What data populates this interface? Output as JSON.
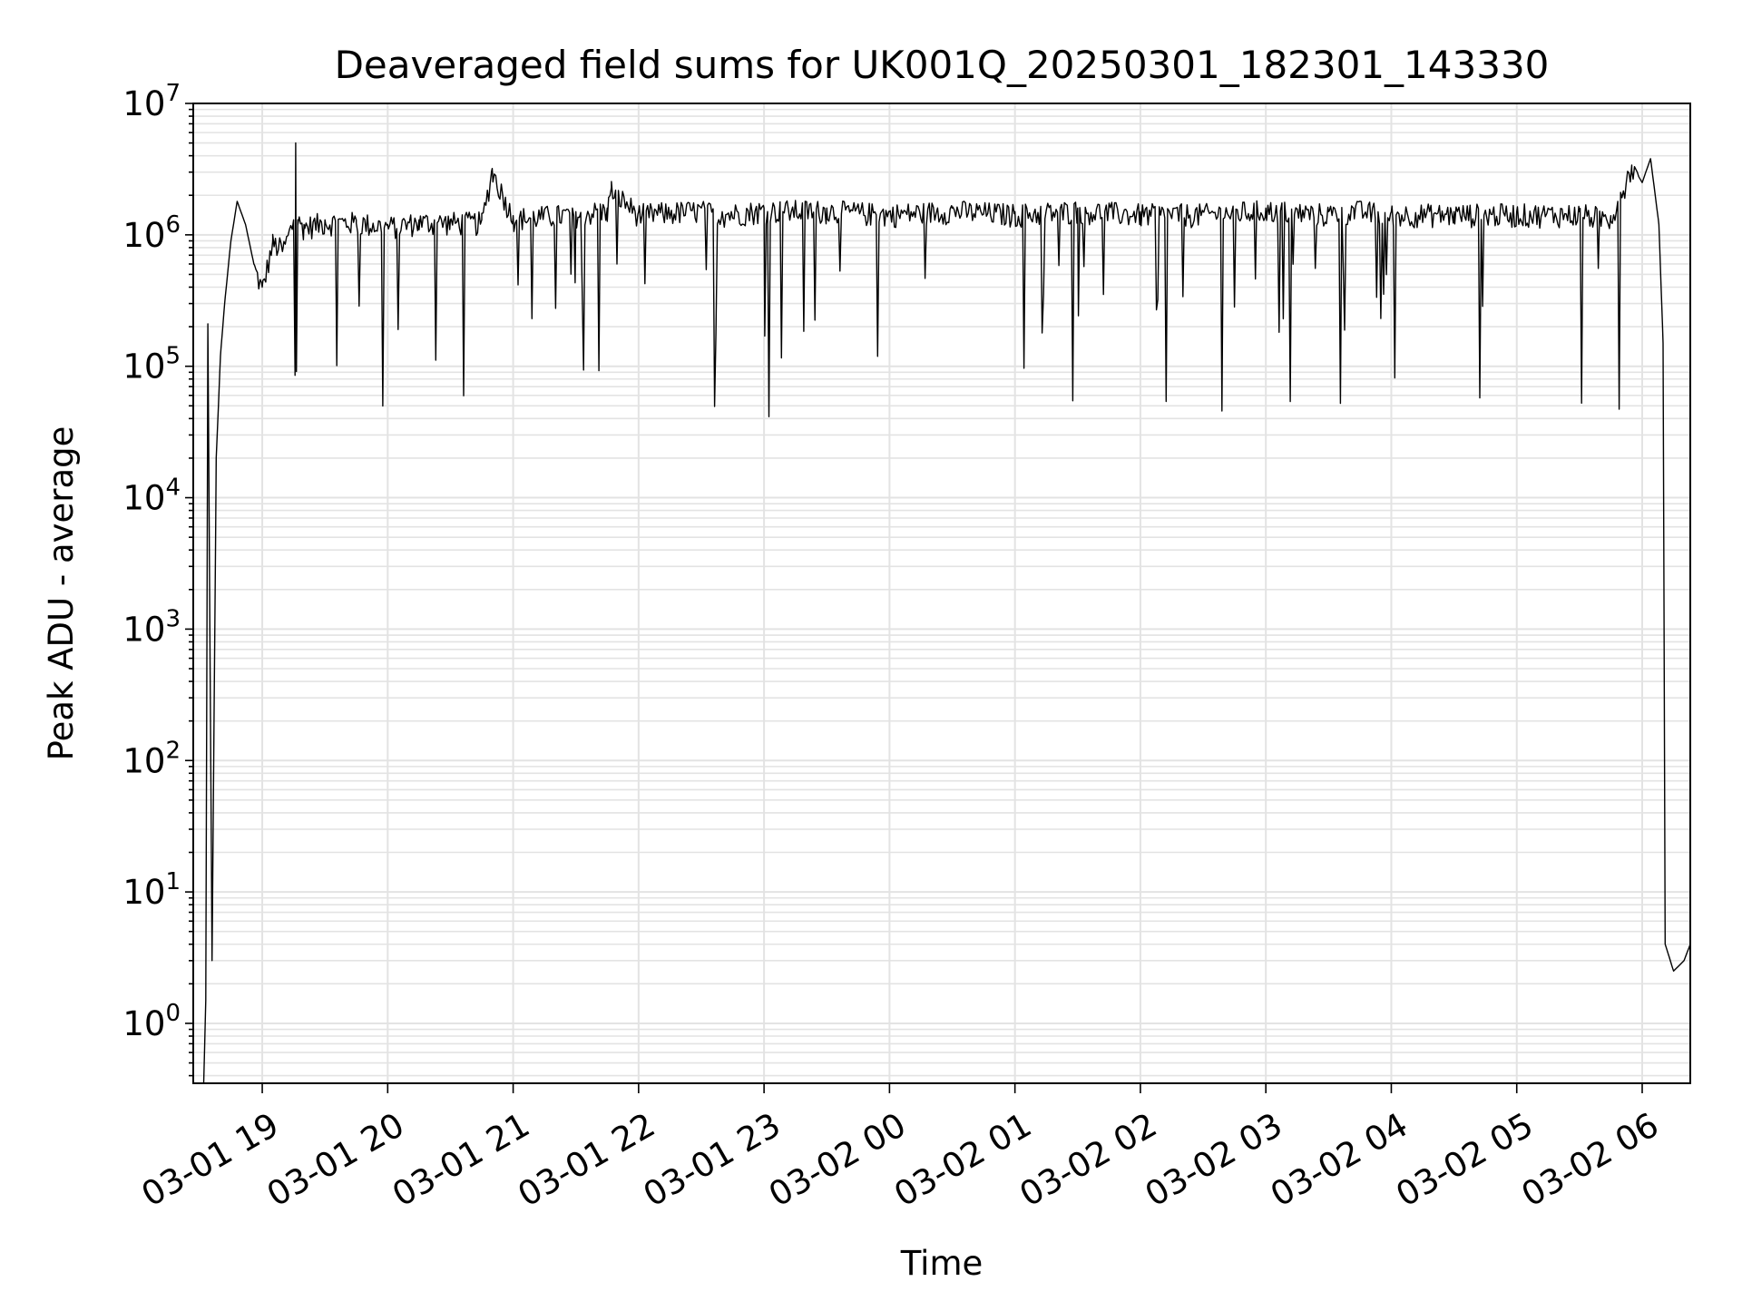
{
  "chart_data": {
    "type": "line",
    "title": "Deaveraged field sums for UK001Q_20250301_182301_143330",
    "xlabel": "Time",
    "ylabel": "Peak ADU - average",
    "yscale": "log",
    "ylim": [
      0.35,
      10000000
    ],
    "xlim": [
      "2025-03-01 18:27",
      "2025-03-02 06:23"
    ],
    "grid": "on (major and minor)",
    "legend": "none",
    "x_ticks": [
      "03-01 19",
      "03-01 20",
      "03-01 21",
      "03-01 22",
      "03-01 23",
      "03-02 00",
      "03-02 01",
      "03-02 02",
      "03-02 03",
      "03-02 04",
      "03-02 05",
      "03-02 06"
    ],
    "y_ticks": [
      {
        "base": "10",
        "exp": "0"
      },
      {
        "base": "10",
        "exp": "1"
      },
      {
        "base": "10",
        "exp": "2"
      },
      {
        "base": "10",
        "exp": "3"
      },
      {
        "base": "10",
        "exp": "4"
      },
      {
        "base": "10",
        "exp": "5"
      },
      {
        "base": "10",
        "exp": "6"
      },
      {
        "base": "10",
        "exp": "7"
      }
    ],
    "series": [
      {
        "color": "#000000",
        "x": [
          "2025-03-01 18:32",
          "2025-03-01 18:33",
          "2025-03-01 18:34",
          "2025-03-01 18:36",
          "2025-03-01 18:38",
          "2025-03-01 18:40",
          "2025-03-01 18:42",
          "2025-03-01 18:45",
          "2025-03-01 18:48",
          "2025-03-01 18:52",
          "2025-03-01 18:56",
          "2025-03-01 19:00",
          "2025-03-01 19:05",
          "2025-03-01 19:10",
          "2025-03-01 19:15",
          "2025-03-01 19:16",
          "2025-03-01 19:17",
          "2025-03-01 19:20",
          "2025-03-01 19:30",
          "2025-03-01 19:45",
          "2025-03-01 20:00",
          "2025-03-01 20:15",
          "2025-03-01 20:30",
          "2025-03-01 20:45",
          "2025-03-01 20:50",
          "2025-03-01 21:00",
          "2025-03-01 21:30",
          "2025-03-01 21:45",
          "2025-03-01 21:47",
          "2025-03-01 22:00",
          "2025-03-01 22:30",
          "2025-03-01 22:40",
          "2025-03-01 23:00",
          "2025-03-01 23:30",
          "2025-03-02 00:00",
          "2025-03-02 00:30",
          "2025-03-02 01:00",
          "2025-03-02 01:30",
          "2025-03-02 02:00",
          "2025-03-02 02:30",
          "2025-03-02 03:00",
          "2025-03-02 03:30",
          "2025-03-02 03:42",
          "2025-03-02 04:00",
          "2025-03-02 04:30",
          "2025-03-02 05:00",
          "2025-03-02 05:30",
          "2025-03-02 05:45",
          "2025-03-02 05:55",
          "2025-03-02 06:00",
          "2025-03-02 06:04",
          "2025-03-02 06:08",
          "2025-03-02 06:10",
          "2025-03-02 06:11",
          "2025-03-02 06:15",
          "2025-03-02 06:20",
          "2025-03-02 06:23"
        ],
        "y": [
          0.35,
          1.5,
          210000,
          3,
          20000,
          120000,
          300000,
          900000,
          1800000,
          1200000,
          600000,
          400000,
          900000,
          800000,
          1300000,
          5000000,
          1300000,
          1200000,
          1300000,
          1300000,
          1200000,
          1300000,
          1300000,
          1300000,
          3200000,
          1400000,
          1500000,
          1600000,
          2300000,
          1500000,
          1600000,
          1500000,
          1600000,
          1600000,
          1500000,
          1600000,
          1500000,
          1600000,
          1500000,
          1500000,
          1600000,
          1500000,
          1600000,
          1500000,
          1500000,
          1500000,
          1500000,
          1400000,
          3400000,
          2500000,
          3800000,
          1200000,
          150000,
          4,
          2.5,
          3,
          4
        ]
      }
    ],
    "dips": {
      "x_start": "2025-03-01 18:56",
      "x_end": "2025-03-02 05:58",
      "low_values": [
        50000,
        100000,
        200000,
        300000,
        500000
      ]
    }
  }
}
